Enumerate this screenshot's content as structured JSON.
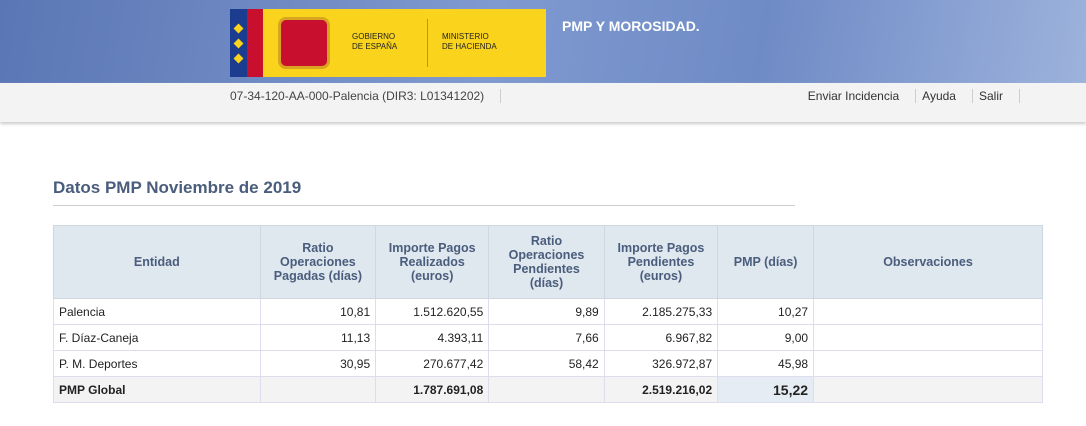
{
  "header": {
    "logo_left": [
      "GOBIERNO",
      "DE ESPAÑA"
    ],
    "logo_right": [
      "MINISTERIO",
      "DE HACIENDA"
    ],
    "title": "PMP Y MOROSIDAD."
  },
  "subbar": {
    "entity": "07-34-120-AA-000-Palencia (DIR3: L01341202)",
    "links": [
      "Enviar Incidencia",
      "Ayuda",
      "Salir"
    ]
  },
  "section_title": "Datos PMP Noviembre de 2019",
  "table": {
    "columns": [
      "Entidad",
      "Ratio Operaciones Pagadas (días)",
      "Importe Pagos Realizados (euros)",
      "Ratio Operaciones Pendientes (días)",
      "Importe Pagos Pendientes (euros)",
      "PMP (días)",
      "Observaciones"
    ],
    "rows": [
      [
        "Palencia",
        "10,81",
        "1.512.620,55",
        "9,89",
        "2.185.275,33",
        "10,27",
        ""
      ],
      [
        "F. Díaz-Caneja",
        "11,13",
        "4.393,11",
        "7,66",
        "6.967,82",
        "9,00",
        ""
      ],
      [
        "P. M. Deportes",
        "30,95",
        "270.677,42",
        "58,42",
        "326.972,87",
        "45,98",
        ""
      ]
    ],
    "total": [
      "PMP Global",
      "",
      "1.787.691,08",
      "",
      "2.519.216,02",
      "15,22",
      ""
    ]
  }
}
